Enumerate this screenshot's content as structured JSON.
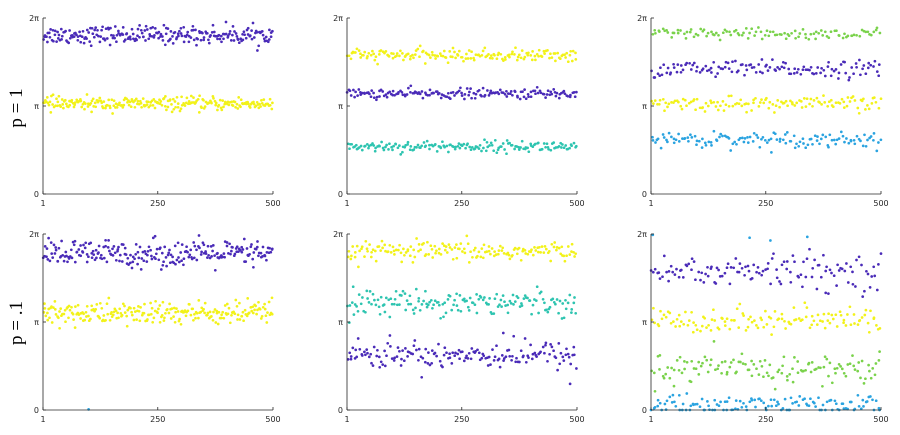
{
  "row_labels": [
    "p = 1",
    "p = .1"
  ],
  "colors": {
    "purple": "#4a2bb8",
    "yellow": "#f2f21a",
    "teal": "#2ec4b0",
    "green": "#7ad24b",
    "blue": "#2aa3e0"
  },
  "chart_data": [
    {
      "type": "scatter",
      "row": 0,
      "col": 0,
      "x_range": [
        1,
        500
      ],
      "y_range_radians": [
        0,
        6.2832
      ],
      "x_ticks": [
        "1",
        "250",
        "500"
      ],
      "y_ticks": [
        "0",
        "π",
        "2π"
      ],
      "grid": false,
      "series": [
        {
          "color": "purple",
          "center": 5.68,
          "spread": 0.16,
          "n": 250
        },
        {
          "color": "yellow",
          "center": 3.22,
          "spread": 0.12,
          "n": 250
        }
      ]
    },
    {
      "type": "scatter",
      "row": 0,
      "col": 1,
      "x_range": [
        1,
        500
      ],
      "y_range_radians": [
        0,
        6.2832
      ],
      "x_ticks": [
        "1",
        "250",
        "500"
      ],
      "y_ticks": [
        "0",
        "π",
        "2π"
      ],
      "grid": false,
      "series": [
        {
          "color": "yellow",
          "center": 4.95,
          "spread": 0.11,
          "n": 170
        },
        {
          "color": "purple",
          "center": 3.58,
          "spread": 0.09,
          "n": 170
        },
        {
          "color": "teal",
          "center": 1.7,
          "spread": 0.1,
          "n": 170
        }
      ]
    },
    {
      "type": "scatter",
      "row": 0,
      "col": 2,
      "x_range": [
        1,
        500
      ],
      "y_range_radians": [
        0,
        6.2832
      ],
      "x_ticks": [
        "1",
        "250",
        "500"
      ],
      "y_ticks": [
        "0",
        "π",
        "2π"
      ],
      "grid": false,
      "series": [
        {
          "color": "green",
          "center": 5.7,
          "spread": 0.11,
          "n": 110
        },
        {
          "color": "purple",
          "center": 4.46,
          "spread": 0.15,
          "n": 130
        },
        {
          "color": "yellow",
          "center": 3.22,
          "spread": 0.13,
          "n": 130
        },
        {
          "color": "blue",
          "center": 1.95,
          "spread": 0.14,
          "n": 130
        }
      ]
    },
    {
      "type": "scatter",
      "row": 1,
      "col": 0,
      "x_range": [
        1,
        500
      ],
      "y_range_radians": [
        0,
        6.2832
      ],
      "x_ticks": [
        "1",
        "250",
        "500"
      ],
      "y_ticks": [
        "0",
        "π",
        "2π"
      ],
      "grid": false,
      "series": [
        {
          "color": "purple",
          "center": 5.58,
          "spread": 0.24,
          "n": 250
        },
        {
          "color": "yellow",
          "center": 3.45,
          "spread": 0.22,
          "n": 250
        }
      ],
      "extra_points": [
        {
          "x": 100,
          "y": 0.02,
          "color": "blue"
        }
      ]
    },
    {
      "type": "scatter",
      "row": 1,
      "col": 1,
      "x_range": [
        1,
        500
      ],
      "y_range_radians": [
        0,
        6.2832
      ],
      "x_ticks": [
        "1",
        "250",
        "500"
      ],
      "y_ticks": [
        "0",
        "π",
        "2π"
      ],
      "grid": false,
      "series": [
        {
          "color": "yellow",
          "center": 5.65,
          "spread": 0.18,
          "n": 170
        },
        {
          "color": "teal",
          "center": 3.85,
          "spread": 0.22,
          "n": 170
        },
        {
          "color": "purple",
          "center": 1.98,
          "spread": 0.24,
          "n": 170
        }
      ],
      "extra_points": [
        {
          "x": 340,
          "y": 2.75,
          "color": "purple"
        },
        {
          "x": 485,
          "y": 0.93,
          "color": "purple"
        }
      ]
    },
    {
      "type": "scatter",
      "row": 1,
      "col": 2,
      "x_range": [
        1,
        500
      ],
      "y_range_radians": [
        0,
        6.2832
      ],
      "x_ticks": [
        "1",
        "250",
        "500"
      ],
      "y_ticks": [
        "0",
        "π",
        "2π"
      ],
      "grid": false,
      "series": [
        {
          "color": "purple",
          "center": 4.95,
          "spread": 0.3,
          "n": 130
        },
        {
          "color": "yellow",
          "center": 3.2,
          "spread": 0.24,
          "n": 130
        },
        {
          "color": "green",
          "center": 1.45,
          "spread": 0.28,
          "n": 130
        },
        {
          "color": "blue",
          "center": 0.18,
          "spread": 0.2,
          "n": 130
        }
      ],
      "extra_points": [
        {
          "x": 5,
          "y": 6.25,
          "color": "blue"
        },
        {
          "x": 215,
          "y": 6.15,
          "color": "blue"
        },
        {
          "x": 260,
          "y": 6.05,
          "color": "blue"
        },
        {
          "x": 340,
          "y": 6.18,
          "color": "blue"
        },
        {
          "x": 380,
          "y": 4.18,
          "color": "purple"
        }
      ]
    }
  ]
}
